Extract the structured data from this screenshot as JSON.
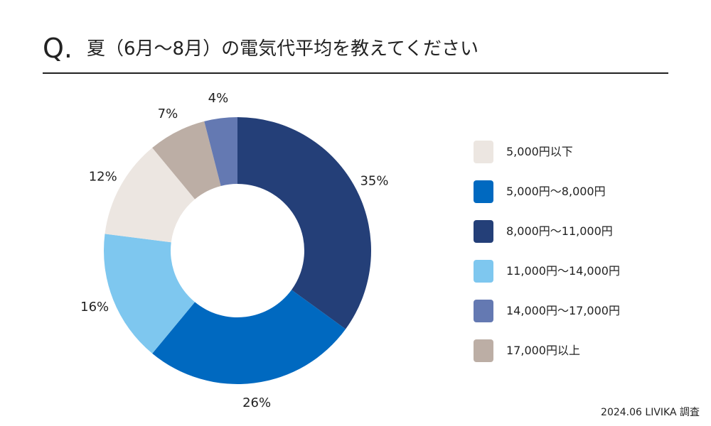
{
  "title": {
    "q_mark": "Q.",
    "text": "夏（6月〜8月）の電気代平均を教えてください"
  },
  "chart_data": {
    "type": "pie",
    "donut": true,
    "unit": "%",
    "categories": [
      "8,000円〜11,000円",
      "5,000円〜8,000円",
      "11,000円〜14,000円",
      "5,000円以下",
      "17,000円以上",
      "14,000円〜17,000円"
    ],
    "values": [
      35,
      26,
      16,
      12,
      7,
      4
    ],
    "labels": [
      "35%",
      "26%",
      "16%",
      "12%",
      "7%",
      "4%"
    ],
    "colors": [
      "#243f78",
      "#0069c0",
      "#7ec7ef",
      "#ece6e1",
      "#bcaea5",
      "#6479b2"
    ],
    "start_angle_deg": 0,
    "direction": "clockwise",
    "legend": {
      "position": "right",
      "items": [
        {
          "label": "5,000円以下",
          "color": "#ece6e1"
        },
        {
          "label": "5,000円〜8,000円",
          "color": "#0069c0"
        },
        {
          "label": "8,000円〜11,000円",
          "color": "#243f78"
        },
        {
          "label": "11,000円〜14,000円",
          "color": "#7ec7ef"
        },
        {
          "label": "14,000円〜17,000円",
          "color": "#6479b2"
        },
        {
          "label": "17,000円以上",
          "color": "#bcaea5"
        }
      ]
    }
  },
  "source": "2024.06 LIVIKA 調査"
}
